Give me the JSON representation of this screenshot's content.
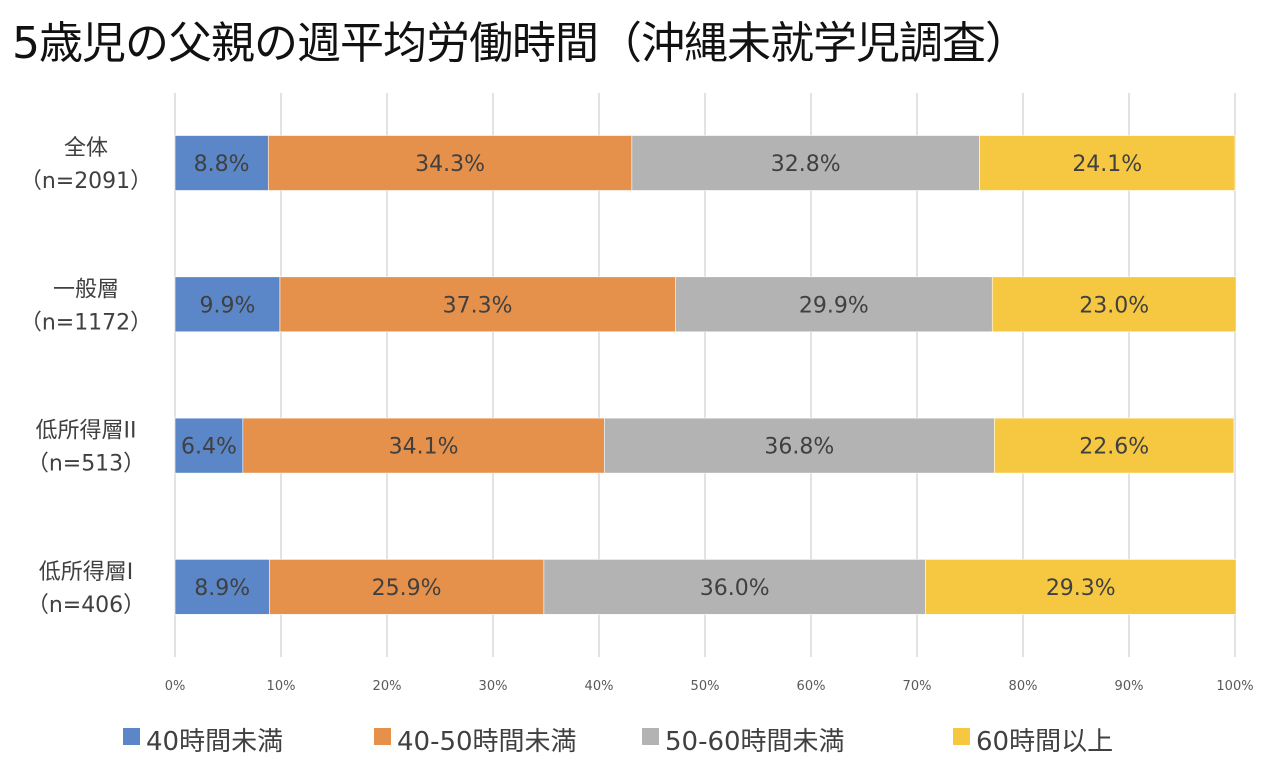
{
  "chart_data": {
    "type": "bar",
    "orientation": "horizontal",
    "stacked": "percent",
    "title": "5歳児の父親の週平均労働時間（沖縄未就学児調査）",
    "xlabel": "",
    "ylabel": "",
    "xlim": [
      0,
      100
    ],
    "x_ticks": [
      "0%",
      "10%",
      "20%",
      "30%",
      "40%",
      "50%",
      "60%",
      "70%",
      "80%",
      "90%",
      "100%"
    ],
    "grid": true,
    "legend_position": "bottom",
    "categories": [
      {
        "name": "全体",
        "n": "（n=2091）"
      },
      {
        "name": "一般層",
        "n": "（n=1172）"
      },
      {
        "name": "低所得層II",
        "n": "（n=513）"
      },
      {
        "name": "低所得層I",
        "n": "（n=406）"
      }
    ],
    "series": [
      {
        "name": "40時間未満",
        "color": "#5b87c8",
        "values": [
          8.8,
          9.9,
          6.4,
          8.9
        ],
        "labels": [
          "8.8%",
          "9.9%",
          "6.4%",
          "8.9%"
        ]
      },
      {
        "name": "40-50時間未満",
        "color": "#e5914b",
        "values": [
          34.3,
          37.3,
          34.1,
          25.9
        ],
        "labels": [
          "34.3%",
          "37.3%",
          "34.1%",
          "25.9%"
        ]
      },
      {
        "name": "50-60時間未満",
        "color": "#b3b3b3",
        "values": [
          32.8,
          29.9,
          36.8,
          36.0
        ],
        "labels": [
          "32.8%",
          "29.9%",
          "36.8%",
          "36.0%"
        ]
      },
      {
        "name": "60時間以上",
        "color": "#f6c842",
        "values": [
          24.1,
          23.0,
          22.6,
          29.3
        ],
        "labels": [
          "24.1%",
          "23.0%",
          "22.6%",
          "29.3%"
        ]
      }
    ]
  }
}
